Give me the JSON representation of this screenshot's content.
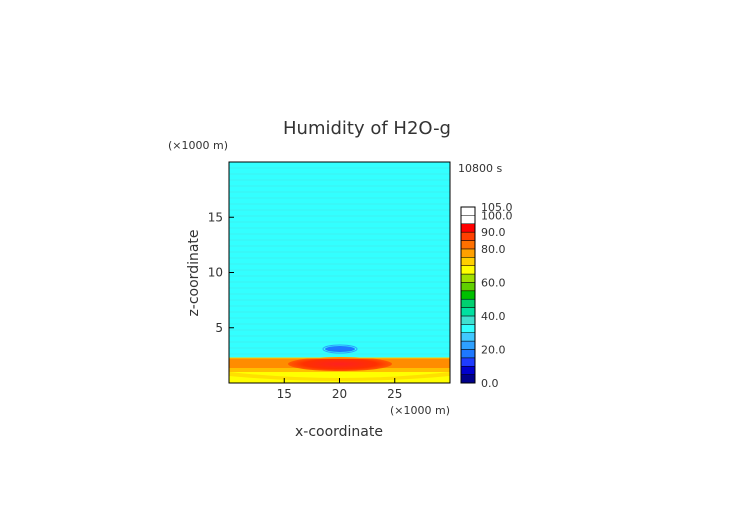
{
  "chart_data": {
    "type": "heatmap",
    "title": "Humidity of H2O-g",
    "xlabel": "x-coordinate",
    "ylabel": "z-coordinate",
    "x_unit": "(×1000 m)",
    "y_unit": "(×1000 m)",
    "time_label": "10800 s",
    "xlim": [
      10,
      30
    ],
    "ylim": [
      0,
      20
    ],
    "x_ticks": [
      15,
      20,
      25
    ],
    "y_ticks": [
      5,
      10,
      15
    ],
    "grid": false,
    "legend": "right",
    "colorbar": {
      "levels": [
        0,
        5,
        10,
        15,
        20,
        25,
        30,
        35,
        40,
        45,
        50,
        55,
        60,
        65,
        70,
        75,
        80,
        85,
        90,
        95,
        100,
        105
      ],
      "labels": [
        "0.0",
        "20.0",
        "40.0",
        "60.0",
        "80.0",
        "90.0",
        "100.0",
        "105.0"
      ],
      "label_values": [
        0,
        20,
        40,
        60,
        80,
        90,
        100,
        105
      ],
      "colors": [
        "#00008b",
        "#0000cd",
        "#1e3cff",
        "#1e78ff",
        "#2ea0ff",
        "#40c8ff",
        "#33ffff",
        "#40e0d0",
        "#00e0a0",
        "#00d070",
        "#00c000",
        "#60d000",
        "#a0e000",
        "#ffff00",
        "#ffd000",
        "#ffa000",
        "#ff7000",
        "#ff4000",
        "#ff0000",
        "#ffffff"
      ]
    },
    "field_description_values": {
      "background": 42,
      "surface_layer_0_1km": 80,
      "layer_1_2km": 90,
      "core_max": 100,
      "dry_patch": 25
    }
  }
}
